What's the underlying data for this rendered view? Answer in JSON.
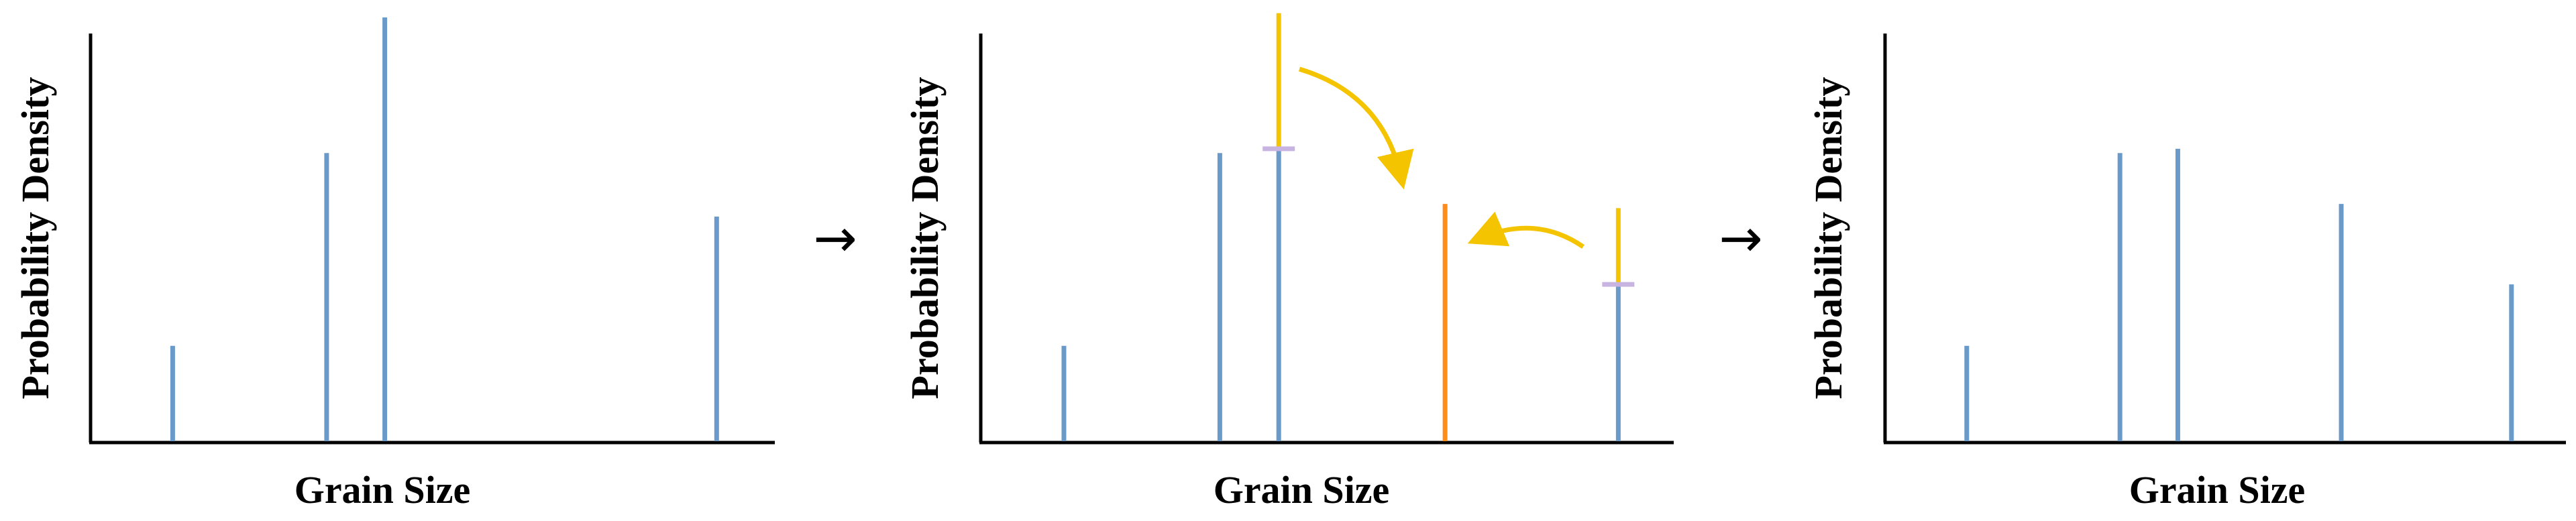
{
  "panels": [
    {
      "xlabel": "Grain Size",
      "ylabel": "Probability Density",
      "bars": [
        {
          "x": 0.12,
          "h": 0.225,
          "color": "#6a9ac9"
        },
        {
          "x": 0.345,
          "h": 0.68,
          "color": "#6a9ac9"
        },
        {
          "x": 0.43,
          "h": 1.0,
          "color": "#6a9ac9"
        },
        {
          "x": 0.915,
          "h": 0.53,
          "color": "#6a9ac9"
        }
      ]
    },
    {
      "xlabel": "Grain Size",
      "ylabel": "Probability Density",
      "bars": [
        {
          "x": 0.12,
          "h": 0.225,
          "color": "#6a9ac9"
        },
        {
          "x": 0.345,
          "h": 0.68,
          "color": "#6a9ac9"
        },
        {
          "x": 0.43,
          "h": 0.69,
          "color": "#6a9ac9",
          "removed": 0.32,
          "removed_color": "#f5c400"
        },
        {
          "x": 0.67,
          "h": 0.56,
          "color": "#ff8c1a",
          "highlight": true
        },
        {
          "x": 0.92,
          "h": 0.37,
          "color": "#6a9ac9",
          "removed": 0.18,
          "removed_color": "#f5c400"
        }
      ]
    },
    {
      "xlabel": "Grain Size",
      "ylabel": "Probability Density",
      "bars": [
        {
          "x": 0.12,
          "h": 0.225,
          "color": "#6a9ac9"
        },
        {
          "x": 0.345,
          "h": 0.68,
          "color": "#6a9ac9"
        },
        {
          "x": 0.43,
          "h": 0.69,
          "color": "#6a9ac9"
        },
        {
          "x": 0.67,
          "h": 0.56,
          "color": "#6a9ac9"
        },
        {
          "x": 0.92,
          "h": 0.37,
          "color": "#6a9ac9"
        }
      ]
    }
  ],
  "transition_arrows": [
    "→",
    "→"
  ],
  "colors": {
    "bar": "#6a9ac9",
    "moved_mass": "#f5c400",
    "target_bar": "#ff8c1a",
    "split_marker": "#c8b4e0",
    "axis": "#000000"
  }
}
